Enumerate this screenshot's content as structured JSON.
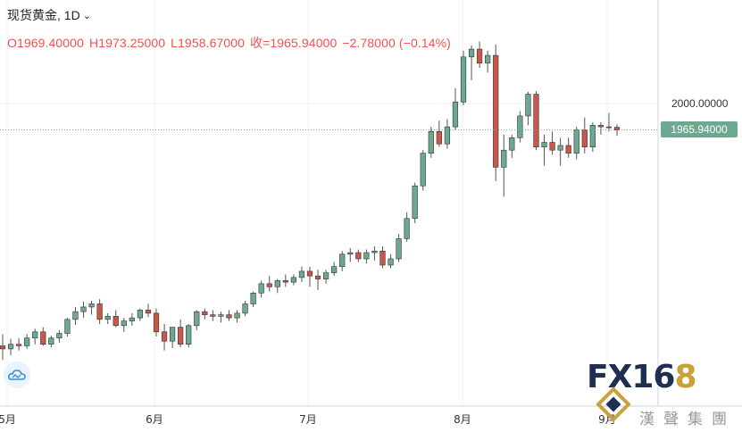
{
  "header": {
    "symbol": "现货黄金",
    "interval": "1D",
    "open": "O1969.40000",
    "high": "H1973.25000",
    "low": "L1958.67000",
    "close": "收=1965.94000",
    "change": "−2.78000 (−0.14%)"
  },
  "price_axis": {
    "tick_label": "2000.00000",
    "current_price_label": "1965.94000"
  },
  "watermark": {
    "brand_a": "FX16",
    "brand_b": "8",
    "company": "漢聲集團"
  },
  "colors": {
    "up": "#26a69a",
    "down": "#ef5350",
    "up_candle": "#6da98f",
    "down_candle": "#c9574a",
    "grid": "#eef0f3"
  },
  "chart_data": {
    "type": "candlestick",
    "title": "现货黄金, 1D",
    "x_ticks": [
      "5月",
      "6月",
      "7月",
      "8月",
      "9月"
    ],
    "y_ticks": [
      2000
    ],
    "current_price": 1965.94,
    "ohlc": [
      [
        1688,
        1703,
        1670,
        1684
      ],
      [
        1684,
        1697,
        1676,
        1690
      ],
      [
        1690,
        1698,
        1682,
        1688
      ],
      [
        1688,
        1703,
        1684,
        1698
      ],
      [
        1698,
        1710,
        1690,
        1706
      ],
      [
        1706,
        1712,
        1688,
        1690
      ],
      [
        1690,
        1701,
        1686,
        1698
      ],
      [
        1698,
        1708,
        1692,
        1704
      ],
      [
        1704,
        1724,
        1700,
        1722
      ],
      [
        1722,
        1738,
        1715,
        1732
      ],
      [
        1732,
        1745,
        1724,
        1738
      ],
      [
        1738,
        1746,
        1728,
        1742
      ],
      [
        1742,
        1748,
        1716,
        1722
      ],
      [
        1722,
        1730,
        1716,
        1726
      ],
      [
        1726,
        1734,
        1712,
        1714
      ],
      [
        1714,
        1724,
        1706,
        1720
      ],
      [
        1720,
        1730,
        1714,
        1724
      ],
      [
        1724,
        1736,
        1720,
        1734
      ],
      [
        1734,
        1742,
        1725,
        1730
      ],
      [
        1730,
        1736,
        1700,
        1706
      ],
      [
        1706,
        1716,
        1682,
        1694
      ],
      [
        1694,
        1708,
        1685,
        1712
      ],
      [
        1712,
        1722,
        1686,
        1690
      ],
      [
        1690,
        1716,
        1686,
        1714
      ],
      [
        1714,
        1734,
        1708,
        1732
      ],
      [
        1732,
        1736,
        1722,
        1728
      ],
      [
        1728,
        1734,
        1720,
        1726
      ],
      [
        1726,
        1732,
        1718,
        1728
      ],
      [
        1728,
        1734,
        1720,
        1724
      ],
      [
        1724,
        1734,
        1718,
        1730
      ],
      [
        1730,
        1746,
        1726,
        1742
      ],
      [
        1742,
        1758,
        1738,
        1756
      ],
      [
        1756,
        1772,
        1750,
        1768
      ],
      [
        1768,
        1778,
        1758,
        1764
      ],
      [
        1764,
        1774,
        1756,
        1772
      ],
      [
        1772,
        1780,
        1764,
        1770
      ],
      [
        1770,
        1780,
        1766,
        1776
      ],
      [
        1776,
        1790,
        1770,
        1784
      ],
      [
        1784,
        1790,
        1764,
        1778
      ],
      [
        1778,
        1786,
        1760,
        1774
      ],
      [
        1774,
        1786,
        1768,
        1782
      ],
      [
        1782,
        1796,
        1778,
        1790
      ],
      [
        1790,
        1810,
        1784,
        1806
      ],
      [
        1806,
        1814,
        1796,
        1808
      ],
      [
        1808,
        1812,
        1796,
        1800
      ],
      [
        1800,
        1812,
        1794,
        1808
      ],
      [
        1808,
        1816,
        1798,
        1810
      ],
      [
        1810,
        1816,
        1788,
        1792
      ],
      [
        1792,
        1806,
        1788,
        1800
      ],
      [
        1800,
        1832,
        1796,
        1826
      ],
      [
        1826,
        1860,
        1822,
        1852
      ],
      [
        1852,
        1898,
        1846,
        1894
      ],
      [
        1894,
        1940,
        1888,
        1936
      ],
      [
        1936,
        1970,
        1930,
        1964
      ],
      [
        1964,
        1978,
        1944,
        1948
      ],
      [
        1948,
        1980,
        1942,
        1970
      ],
      [
        1970,
        2020,
        1966,
        2002
      ],
      [
        2002,
        2068,
        1998,
        2060
      ],
      [
        2060,
        2075,
        2030,
        2070
      ],
      [
        2070,
        2080,
        2046,
        2052
      ],
      [
        2052,
        2068,
        2040,
        2062
      ],
      [
        2062,
        2076,
        1900,
        1918
      ],
      [
        1918,
        1960,
        1880,
        1940
      ],
      [
        1940,
        1960,
        1930,
        1956
      ],
      [
        1956,
        1990,
        1950,
        1984
      ],
      [
        1984,
        2015,
        1972,
        2012
      ],
      [
        2012,
        2016,
        1940,
        1944
      ],
      [
        1944,
        1960,
        1920,
        1950
      ],
      [
        1950,
        1964,
        1934,
        1940
      ],
      [
        1940,
        1956,
        1920,
        1946
      ],
      [
        1946,
        1956,
        1930,
        1936
      ],
      [
        1936,
        1970,
        1928,
        1966
      ],
      [
        1966,
        1982,
        1936,
        1944
      ],
      [
        1944,
        1976,
        1938,
        1972
      ],
      [
        1972,
        1976,
        1960,
        1970
      ],
      [
        1970,
        1988,
        1964,
        1969
      ],
      [
        1969.4,
        1973.25,
        1958.67,
        1965.94
      ]
    ]
  }
}
